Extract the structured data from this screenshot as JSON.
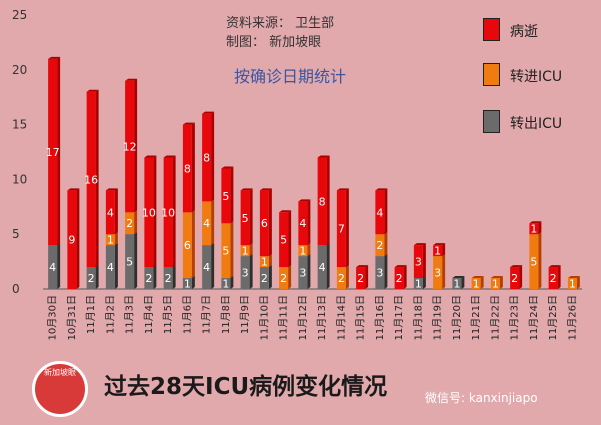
{
  "chart_data": {
    "type": "bar",
    "stacked": true,
    "categories": [
      "10月30日",
      "10月31日",
      "11月1日",
      "11月2日",
      "11月3日",
      "11月4日",
      "11月5日",
      "11月6日",
      "11月7日",
      "11月8日",
      "11月9日",
      "11月10日",
      "11月11日",
      "11月12日",
      "11月13日",
      "11月14日",
      "11月15日",
      "11月16日",
      "11月17日",
      "11月18日",
      "11月19日",
      "11月20日",
      "11月21日",
      "11月22日",
      "11月23日",
      "11月24日",
      "11月25日",
      "11月26日"
    ],
    "series": [
      {
        "name": "转出ICU",
        "color": "#6b6b6b",
        "values": [
          4,
          0,
          2,
          4,
          5,
          2,
          2,
          1,
          4,
          1,
          3,
          2,
          0,
          3,
          4,
          0,
          0,
          3,
          0,
          1,
          0,
          1,
          0,
          0,
          0,
          0,
          0,
          0
        ]
      },
      {
        "name": "转进ICU",
        "color": "#f07b10",
        "values": [
          0,
          0,
          0,
          1,
          2,
          0,
          0,
          6,
          4,
          5,
          1,
          1,
          2,
          1,
          0,
          2,
          0,
          2,
          0,
          0,
          3,
          0,
          1,
          1,
          0,
          5,
          0,
          1
        ]
      },
      {
        "name": "病逝",
        "color": "#e8070a",
        "values": [
          17,
          9,
          16,
          4,
          12,
          10,
          10,
          8,
          8,
          5,
          5,
          6,
          5,
          4,
          8,
          7,
          2,
          4,
          2,
          3,
          1,
          0,
          0,
          0,
          2,
          1,
          2,
          0
        ]
      }
    ],
    "ylim": [
      0,
      25
    ],
    "yticks": [
      0,
      5,
      10,
      15,
      20,
      25
    ],
    "grid": false,
    "legend_position": "right",
    "title": "按确诊日期统计",
    "xlabel": "",
    "ylabel": ""
  },
  "annotations": {
    "source": "资料来源：  卫生部",
    "maker": "制图：  新加坡眼"
  },
  "footer": {
    "title": "过去28天ICU病例变化情况",
    "credit": "微信号: kanxinjiapo",
    "logo_text": "新加坡眼"
  }
}
